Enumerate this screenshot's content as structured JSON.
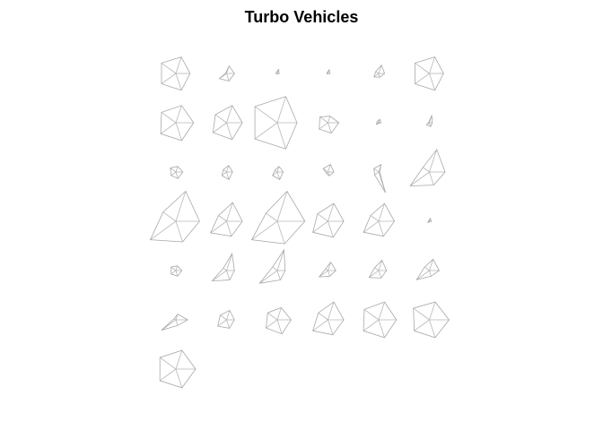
{
  "chart_data": {
    "type": "star",
    "title": "Turbo Vehicles",
    "n_columns": 6,
    "n_variables": 5,
    "start_angle_deg": 0,
    "max_radius": 1.0,
    "stars": [
      [
        0.72,
        0.88,
        0.9,
        0.9,
        0.9
      ],
      [
        0.4,
        0.4,
        0.05,
        0.45,
        0.4
      ],
      [
        0.1,
        0.22,
        0.08,
        0.05,
        0.02
      ],
      [
        0.1,
        0.2,
        0.06,
        0.05,
        0.02
      ],
      [
        0.3,
        0.45,
        0.18,
        0.3,
        0.2
      ],
      [
        0.72,
        0.88,
        0.9,
        0.9,
        0.9
      ],
      [
        0.9,
        0.92,
        0.9,
        0.95,
        0.95
      ],
      [
        0.8,
        0.92,
        0.7,
        0.85,
        0.9
      ],
      [
        1.0,
        1.4,
        1.4,
        1.4,
        1.4
      ],
      [
        0.55,
        0.35,
        0.5,
        0.55,
        0.55
      ],
      [
        0.12,
        0.18,
        0.1,
        0.14,
        0.04
      ],
      [
        0.15,
        0.4,
        0.04,
        0.18,
        0.2
      ],
      [
        0.35,
        0.3,
        0.35,
        0.3,
        0.35
      ],
      [
        0.3,
        0.35,
        0.2,
        0.3,
        0.4
      ],
      [
        0.3,
        0.3,
        0.15,
        0.3,
        0.4
      ],
      [
        0.3,
        0.4,
        0.3,
        0.1,
        0.2
      ],
      [
        0.05,
        0.4,
        0.3,
        0.25,
        1.1
      ],
      [
        0.8,
        1.2,
        0.4,
        1.2,
        0.7
      ],
      [
        1.2,
        1.6,
        0.8,
        1.6,
        1.1
      ],
      [
        0.8,
        1.0,
        0.5,
        1.0,
        0.8
      ],
      [
        1.4,
        1.6,
        0.7,
        1.6,
        1.2
      ],
      [
        0.8,
        0.95,
        0.65,
        0.95,
        0.85
      ],
      [
        0.8,
        0.95,
        0.5,
        0.95,
        0.8
      ],
      [
        0.1,
        0.16,
        0.05,
        0.1,
        0.04
      ],
      [
        0.3,
        0.25,
        0.3,
        0.3,
        0.3
      ],
      [
        0.4,
        0.9,
        0.2,
        0.9,
        0.5
      ],
      [
        0.4,
        1.1,
        0.3,
        1.1,
        0.5
      ],
      [
        0.4,
        0.45,
        0.15,
        0.55,
        0.3
      ],
      [
        0.4,
        0.55,
        0.25,
        0.6,
        0.4
      ],
      [
        0.5,
        0.6,
        0.3,
        0.8,
        0.3
      ],
      [
        0.6,
        0.3,
        0.1,
        0.9,
        0.3
      ],
      [
        0.4,
        0.5,
        0.4,
        0.55,
        0.45
      ],
      [
        0.7,
        0.65,
        0.6,
        0.7,
        0.75
      ],
      [
        0.8,
        0.95,
        0.6,
        0.95,
        0.8
      ],
      [
        0.9,
        0.95,
        0.9,
        0.95,
        0.95
      ],
      [
        1.0,
        0.95,
        1.0,
        0.95,
        0.95
      ],
      [
        1.0,
        1.0,
        1.0,
        1.0,
        1.0
      ]
    ],
    "ray_color": "#b8b8b8",
    "outline_color": "#a8a8a8"
  }
}
